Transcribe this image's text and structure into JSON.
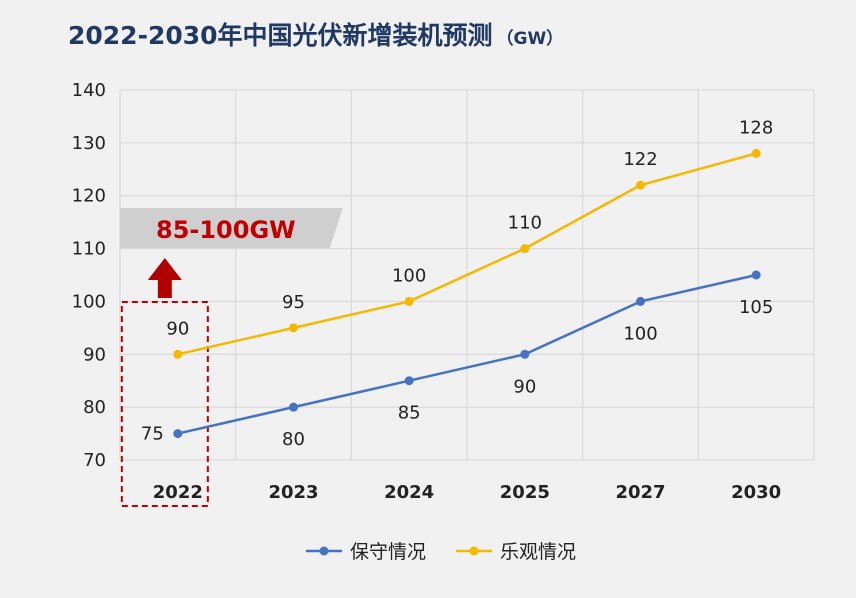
{
  "chart_data": {
    "type": "line",
    "title": "2022-2030年中国光伏新增装机预测",
    "title_unit": "（GW）",
    "categories": [
      "2022",
      "2023",
      "2024",
      "2025",
      "2027",
      "2030"
    ],
    "ylim": [
      70,
      140
    ],
    "yticks": [
      70,
      80,
      90,
      100,
      110,
      120,
      130,
      140
    ],
    "grid": true,
    "legend_position": "bottom",
    "series": [
      {
        "name": "保守情况",
        "values": [
          75,
          80,
          85,
          90,
          100,
          105
        ],
        "color": "#4472c4"
      },
      {
        "name": "乐观情况",
        "values": [
          90,
          95,
          100,
          110,
          122,
          128
        ],
        "color": "#f5b800"
      }
    ],
    "annotation": {
      "text": "85-100GW",
      "color": "#c00000",
      "category": "2022"
    }
  }
}
